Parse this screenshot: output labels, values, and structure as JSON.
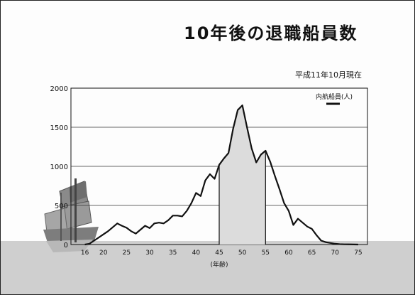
{
  "title": "10年後の退職船員数",
  "date_note": "平成11年10月現在",
  "chart_data": {
    "type": "line",
    "title": "10年後の退職船員数",
    "xlabel": "(年齢)",
    "ylabel": "",
    "xlim": [
      13,
      77
    ],
    "ylim": [
      0,
      2000
    ],
    "x_ticks": [
      16,
      20,
      25,
      30,
      35,
      40,
      45,
      50,
      55,
      60,
      65,
      70,
      75
    ],
    "y_ticks": [
      0,
      500,
      1000,
      1500,
      2000
    ],
    "grid": "horizontal",
    "legend_position": "top-right",
    "series": [
      {
        "name": "内航船員(人)",
        "color": "#111111",
        "x": [
          16,
          17,
          18,
          19,
          20,
          21,
          22,
          23,
          24,
          25,
          26,
          27,
          28,
          29,
          30,
          31,
          32,
          33,
          34,
          35,
          36,
          37,
          38,
          39,
          40,
          41,
          42,
          43,
          44,
          45,
          46,
          47,
          48,
          49,
          50,
          51,
          52,
          53,
          54,
          55,
          56,
          57,
          58,
          59,
          60,
          61,
          62,
          63,
          64,
          65,
          66,
          67,
          68,
          69,
          70,
          71,
          72,
          73,
          74,
          75
        ],
        "values": [
          0,
          10,
          50,
          90,
          130,
          170,
          220,
          270,
          240,
          215,
          170,
          140,
          190,
          240,
          210,
          270,
          280,
          270,
          310,
          370,
          370,
          360,
          430,
          530,
          660,
          620,
          820,
          900,
          840,
          1020,
          1100,
          1170,
          1480,
          1720,
          1780,
          1500,
          1230,
          1050,
          1150,
          1200,
          1060,
          880,
          710,
          530,
          430,
          250,
          330,
          280,
          230,
          200,
          120,
          50,
          30,
          20,
          10,
          5,
          3,
          2,
          1,
          0
        ]
      }
    ],
    "highlight_range": [
      45,
      55
    ],
    "colors": {
      "line": "#111111",
      "highlight_fill": "#dcdcdc",
      "ground": "#cfcfcf"
    }
  }
}
